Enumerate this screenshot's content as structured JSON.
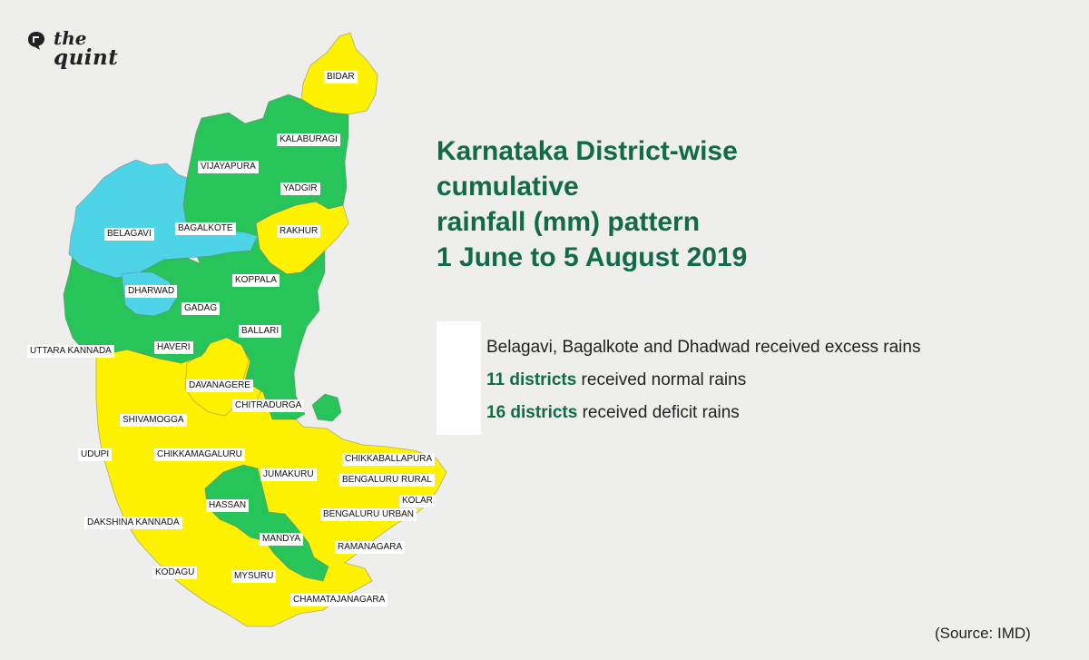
{
  "brand": {
    "line1": "the",
    "line2": "quint"
  },
  "title_lines": [
    "Karnataka District-wise",
    "cumulative",
    "rainfall (mm) pattern",
    "1 June to 5 August 2019"
  ],
  "colors": {
    "excess": "#4dd4e6",
    "normal": "#27c45a",
    "deficit": "#fff200",
    "title": "#116b45"
  },
  "legend": [
    {
      "category": "excess",
      "bold": "",
      "text": "Belagavi, Bagalkote and Dhadwad received excess rains"
    },
    {
      "category": "normal",
      "bold": "11 districts",
      "text": " received normal rains"
    },
    {
      "category": "deficit",
      "bold": "16 districts",
      "text": " received deficit rains"
    }
  ],
  "districts": [
    "BIDAR",
    "KALABURAGI",
    "VIJAYAPURA",
    "YADGIR",
    "BELAGAVI",
    "BAGALKOTE",
    "RAKHUR",
    "KOPPALA",
    "DHARWAD",
    "GADAG",
    "BALLARI",
    "UTTARA KANNADA",
    "HAVERI",
    "DAVANAGERE",
    "CHITRADURGA",
    "SHIVAMOGGA",
    "UDUPI",
    "CHIKKAMAGALURU",
    "JUMAKURU",
    "CHIKKABALLAPURA",
    "BENGALURU RURAL",
    "KOLAR",
    "HASSAN",
    "BENGALURU URBAN",
    "DAKSHINA KANNADA",
    "MANDYA",
    "RAMANAGARA",
    "KODAGU",
    "MYSURU",
    "CHAMATAJANAGARA"
  ],
  "source": "(Source: IMD)"
}
